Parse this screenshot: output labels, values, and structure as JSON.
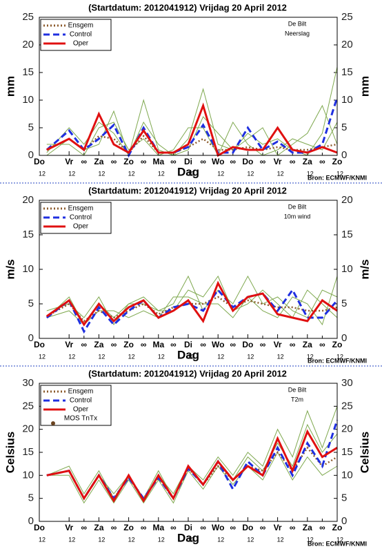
{
  "chart_data": [
    {
      "type": "line",
      "title": "(Startdatum: 2012041912)   Vrijdag   20 April    2012",
      "annotations": [
        "De Bilt",
        "Neerslag"
      ],
      "source": "Bron: ECMWF/KNMI",
      "xlabel": "Dag",
      "ylabel": "mm",
      "day_sublabel": "12",
      "x": [
        6,
        24,
        36,
        48,
        60,
        72,
        84,
        96,
        108,
        120,
        132,
        144,
        156,
        168,
        180,
        192,
        204,
        216,
        228,
        240
      ],
      "xlim": [
        0,
        240
      ],
      "xticks": [
        {
          "value": 0,
          "label": "Do"
        },
        {
          "value": 24,
          "label": "Vr"
        },
        {
          "value": 48,
          "label": "Za"
        },
        {
          "value": 72,
          "label": "Zo"
        },
        {
          "value": 96,
          "label": "Ma"
        },
        {
          "value": 120,
          "label": "Di"
        },
        {
          "value": 144,
          "label": "Wo"
        },
        {
          "value": 168,
          "label": "Do"
        },
        {
          "value": 192,
          "label": "Vr"
        },
        {
          "value": 216,
          "label": "Za"
        },
        {
          "value": 240,
          "label": "Zo"
        }
      ],
      "xminor_ticks": [
        {
          "value": 36,
          "label": "∞"
        },
        {
          "value": 60,
          "label": "∞"
        },
        {
          "value": 84,
          "label": "∞"
        },
        {
          "value": 108,
          "label": "∞"
        },
        {
          "value": 132,
          "label": "∞"
        },
        {
          "value": 156,
          "label": "∞"
        },
        {
          "value": 180,
          "label": "∞"
        },
        {
          "value": 204,
          "label": "∞"
        },
        {
          "value": 228,
          "label": "∞"
        }
      ],
      "ylim": [
        0,
        25
      ],
      "yticks": [
        0,
        5,
        10,
        15,
        20,
        25
      ],
      "members_color": "#7ea84e",
      "members": [
        [
          0.5,
          5,
          2,
          6,
          4,
          0,
          10,
          1,
          0,
          3,
          12,
          2,
          1,
          4,
          2,
          3,
          1,
          0,
          4,
          16
        ],
        [
          2,
          2,
          0,
          5,
          6,
          1,
          3,
          0,
          1,
          5,
          5,
          0,
          6,
          2,
          0,
          1,
          3,
          2,
          1,
          6
        ],
        [
          0,
          3,
          1,
          2,
          8,
          0,
          6,
          2,
          0,
          1,
          7,
          4,
          1,
          3,
          5,
          0,
          2,
          4,
          9,
          2
        ]
      ],
      "series": [
        {
          "name": "Ensgem",
          "color": "#8b5a2b",
          "style": "dotted",
          "values": [
            1,
            3,
            1,
            3.5,
            3,
            0.5,
            3.5,
            0.5,
            0.5,
            1.5,
            3,
            1,
            1,
            1.5,
            1,
            1.5,
            1,
            1,
            1.5,
            2
          ]
        },
        {
          "name": "Control",
          "color": "#1f2fe0",
          "style": "dashed",
          "values": [
            1,
            4.5,
            1,
            3,
            5.5,
            0,
            5,
            0.5,
            0.5,
            1.5,
            5.5,
            0.5,
            0.5,
            5,
            1,
            2.5,
            0.5,
            0.5,
            2,
            10.5
          ]
        },
        {
          "name": "Oper",
          "color": "#e01010",
          "style": "solid",
          "values": [
            1,
            3,
            1,
            7.5,
            2,
            0.5,
            4.5,
            0.5,
            0.5,
            2,
            9,
            0,
            1.5,
            1,
            1,
            5,
            1,
            0.5,
            1.5,
            0.5
          ]
        }
      ]
    },
    {
      "type": "line",
      "title": "(Startdatum: 2012041912)   Vrijdag   20 April    2012",
      "annotations": [
        "De Bilt",
        "10m wind"
      ],
      "source": "Bron: ECMWF/KNMI",
      "xlabel": "Dag",
      "ylabel": "m/s",
      "day_sublabel": "12",
      "x": [
        6,
        24,
        36,
        48,
        60,
        72,
        84,
        96,
        108,
        120,
        132,
        144,
        156,
        168,
        180,
        192,
        204,
        216,
        228,
        240
      ],
      "xlim": [
        0,
        240
      ],
      "xticks": [
        {
          "value": 0,
          "label": "Do"
        },
        {
          "value": 24,
          "label": "Vr"
        },
        {
          "value": 48,
          "label": "Za"
        },
        {
          "value": 72,
          "label": "Zo"
        },
        {
          "value": 96,
          "label": "Ma"
        },
        {
          "value": 120,
          "label": "Di"
        },
        {
          "value": 144,
          "label": "Wo"
        },
        {
          "value": 168,
          "label": "Do"
        },
        {
          "value": 192,
          "label": "Vr"
        },
        {
          "value": 216,
          "label": "Za"
        },
        {
          "value": 240,
          "label": "Zo"
        }
      ],
      "xminor_ticks": [
        {
          "value": 36,
          "label": "∞"
        },
        {
          "value": 60,
          "label": "∞"
        },
        {
          "value": 84,
          "label": "∞"
        },
        {
          "value": 108,
          "label": "∞"
        },
        {
          "value": 132,
          "label": "∞"
        },
        {
          "value": 156,
          "label": "∞"
        },
        {
          "value": 180,
          "label": "∞"
        },
        {
          "value": 204,
          "label": "∞"
        },
        {
          "value": 228,
          "label": "∞"
        }
      ],
      "ylim": [
        0,
        20
      ],
      "yticks": [
        0,
        5,
        10,
        15,
        20
      ],
      "members_color": "#7ea84e",
      "members": [
        [
          4,
          5,
          3,
          6,
          2,
          5,
          6,
          4,
          5,
          9,
          4,
          7,
          5,
          9,
          5,
          6,
          4,
          3,
          7,
          6
        ],
        [
          3,
          4,
          2,
          4,
          4,
          3,
          4,
          3,
          6,
          6,
          5,
          5,
          3,
          6,
          4,
          3,
          6,
          5,
          2,
          9
        ],
        [
          3,
          6,
          2,
          5,
          3,
          5,
          5,
          4,
          4,
          7,
          6,
          9,
          4,
          5,
          7,
          5,
          3,
          7,
          5,
          3
        ]
      ],
      "series": [
        {
          "name": "Ensgem",
          "color": "#8b5a2b",
          "style": "dotted",
          "values": [
            3.2,
            5,
            2.5,
            4,
            3,
            4,
            5,
            3.5,
            4.5,
            5,
            5,
            6,
            4.5,
            5.5,
            5,
            4.5,
            4.5,
            4,
            4,
            4.5
          ]
        },
        {
          "name": "Control",
          "color": "#1f2fe0",
          "style": "dashed",
          "values": [
            3,
            5.5,
            1,
            4.5,
            2,
            4,
            5.5,
            3,
            4.5,
            5,
            4,
            7,
            4.5,
            6,
            6.5,
            4,
            7,
            3,
            3,
            5.5
          ]
        },
        {
          "name": "Oper",
          "color": "#e01010",
          "style": "solid",
          "values": [
            3.2,
            5.5,
            2,
            5,
            2.5,
            4.5,
            5.5,
            3,
            4,
            5.5,
            2.5,
            8,
            4,
            6,
            6.5,
            3.5,
            3,
            2.5,
            5.5,
            4
          ]
        }
      ]
    },
    {
      "type": "line",
      "title": "(Startdatum: 2012041912)   Vrijdag   20 April    2012",
      "annotations": [
        "De Bilt",
        "T2m"
      ],
      "source": "Bron: ECMWF/KNMI",
      "xlabel": "Dag",
      "ylabel": "Celsius",
      "day_sublabel": "12",
      "x": [
        6,
        24,
        36,
        48,
        60,
        72,
        84,
        96,
        108,
        120,
        132,
        144,
        156,
        168,
        180,
        192,
        204,
        216,
        228,
        240
      ],
      "xlim": [
        0,
        240
      ],
      "xticks": [
        {
          "value": 0,
          "label": "Do"
        },
        {
          "value": 24,
          "label": "Vr"
        },
        {
          "value": 48,
          "label": "Za"
        },
        {
          "value": 72,
          "label": "Zo"
        },
        {
          "value": 96,
          "label": "Ma"
        },
        {
          "value": 120,
          "label": "Di"
        },
        {
          "value": 144,
          "label": "Wo"
        },
        {
          "value": 168,
          "label": "Do"
        },
        {
          "value": 192,
          "label": "Vr"
        },
        {
          "value": 216,
          "label": "Za"
        },
        {
          "value": 240,
          "label": "Zo"
        }
      ],
      "xminor_ticks": [
        {
          "value": 36,
          "label": "∞"
        },
        {
          "value": 60,
          "label": "∞"
        },
        {
          "value": 84,
          "label": "∞"
        },
        {
          "value": 108,
          "label": "∞"
        },
        {
          "value": 132,
          "label": "∞"
        },
        {
          "value": 156,
          "label": "∞"
        },
        {
          "value": 180,
          "label": "∞"
        },
        {
          "value": 204,
          "label": "∞"
        },
        {
          "value": 228,
          "label": "∞"
        }
      ],
      "ylim": [
        0,
        30
      ],
      "yticks": [
        0,
        5,
        10,
        15,
        20,
        25,
        30
      ],
      "members_color": "#7ea84e",
      "members": [
        [
          10,
          12,
          6,
          11,
          5,
          10,
          5,
          10,
          6,
          12,
          9,
          14,
          10,
          15,
          12,
          20,
          14,
          24,
          16,
          25
        ],
        [
          10,
          10,
          4,
          9,
          4,
          9,
          4,
          9,
          4,
          11,
          7,
          12,
          8,
          12,
          9,
          15,
          9,
          14,
          10,
          12
        ],
        [
          10,
          11,
          5,
          10,
          6,
          10,
          5,
          11,
          5,
          12,
          8,
          13,
          9,
          14,
          11,
          17,
          12,
          21,
          15,
          19
        ]
      ],
      "series": [
        {
          "name": "Ensgem",
          "color": "#8b5a2b",
          "style": "dotted",
          "values": [
            10,
            11,
            5,
            10,
            5,
            9.5,
            5,
            9.5,
            5,
            11.5,
            8,
            12,
            9,
            12,
            11,
            15,
            11,
            16,
            12,
            14
          ]
        },
        {
          "name": "Control",
          "color": "#1f2fe0",
          "style": "dashed",
          "values": [
            10,
            11,
            5,
            10,
            5,
            9.5,
            5,
            9.5,
            5,
            11.5,
            8,
            13,
            7,
            13,
            10,
            16,
            10,
            17,
            12,
            22
          ]
        },
        {
          "name": "Oper",
          "color": "#e01010",
          "style": "solid",
          "values": [
            10,
            11,
            5,
            10,
            4.5,
            10,
            4.5,
            10,
            5,
            12,
            8,
            13,
            9,
            12,
            10,
            18,
            11,
            19.5,
            14,
            16
          ]
        },
        {
          "name": "MOS TnTx",
          "color": "#6b4420",
          "style": "dot",
          "values": [
            null,
            null,
            null,
            null,
            null,
            null,
            null,
            null,
            null,
            null,
            null,
            null,
            null,
            null,
            null,
            null,
            null,
            null,
            null,
            null
          ]
        }
      ]
    }
  ]
}
